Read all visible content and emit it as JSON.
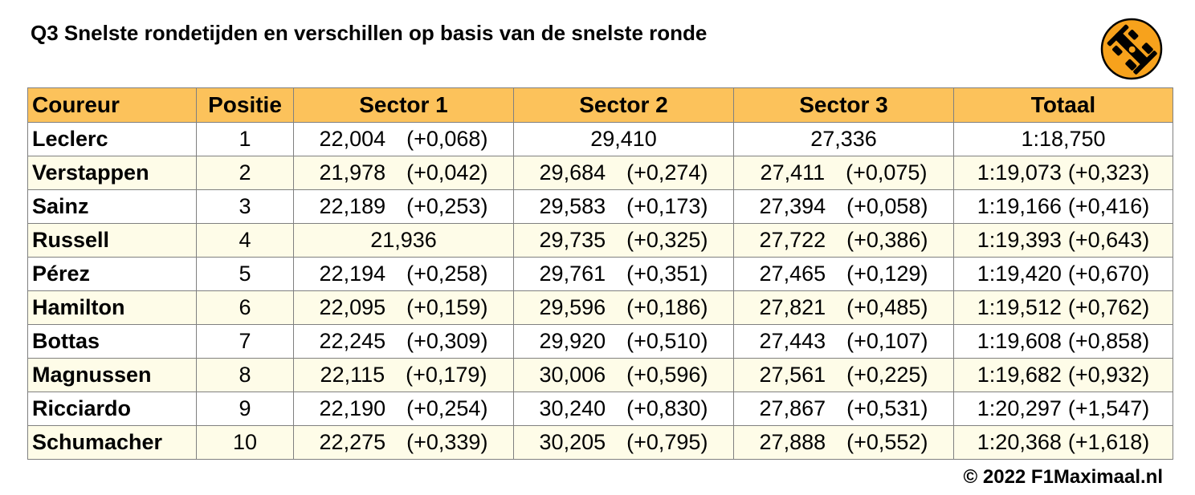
{
  "title": "Q3 Snelste rondetijden en verschillen op basis van de snelste ronde",
  "logo_icon": "race-car-icon",
  "colors": {
    "header_bg": "#fcc25b",
    "alt_row_bg": "#fefce8",
    "logo_bg": "#f7a21c"
  },
  "table": {
    "headers": [
      "Coureur",
      "Positie",
      "Sector 1",
      "Sector 2",
      "Sector 3",
      "Totaal"
    ],
    "rows": [
      {
        "driver": "Leclerc",
        "pos": "1",
        "s1": "22,004",
        "s1d": "(+0,068)",
        "s2": "29,410",
        "s2d": "",
        "s3": "27,336",
        "s3d": "",
        "tot": "1:18,750",
        "totd": ""
      },
      {
        "driver": "Verstappen",
        "pos": "2",
        "s1": "21,978",
        "s1d": "(+0,042)",
        "s2": "29,684",
        "s2d": "(+0,274)",
        "s3": "27,411",
        "s3d": "(+0,075)",
        "tot": "1:19,073",
        "totd": "(+0,323)"
      },
      {
        "driver": "Sainz",
        "pos": "3",
        "s1": "22,189",
        "s1d": "(+0,253)",
        "s2": "29,583",
        "s2d": "(+0,173)",
        "s3": "27,394",
        "s3d": "(+0,058)",
        "tot": "1:19,166",
        "totd": "(+0,416)"
      },
      {
        "driver": "Russell",
        "pos": "4",
        "s1": "21,936",
        "s1d": "",
        "s2": "29,735",
        "s2d": "(+0,325)",
        "s3": "27,722",
        "s3d": "(+0,386)",
        "tot": "1:19,393",
        "totd": "(+0,643)"
      },
      {
        "driver": "Pérez",
        "pos": "5",
        "s1": "22,194",
        "s1d": "(+0,258)",
        "s2": "29,761",
        "s2d": "(+0,351)",
        "s3": "27,465",
        "s3d": "(+0,129)",
        "tot": "1:19,420",
        "totd": "(+0,670)"
      },
      {
        "driver": "Hamilton",
        "pos": "6",
        "s1": "22,095",
        "s1d": "(+0,159)",
        "s2": "29,596",
        "s2d": "(+0,186)",
        "s3": "27,821",
        "s3d": "(+0,485)",
        "tot": "1:19,512",
        "totd": "(+0,762)"
      },
      {
        "driver": "Bottas",
        "pos": "7",
        "s1": "22,245",
        "s1d": "(+0,309)",
        "s2": "29,920",
        "s2d": "(+0,510)",
        "s3": "27,443",
        "s3d": "(+0,107)",
        "tot": "1:19,608",
        "totd": "(+0,858)"
      },
      {
        "driver": "Magnussen",
        "pos": "8",
        "s1": "22,115",
        "s1d": "(+0,179)",
        "s2": "30,006",
        "s2d": "(+0,596)",
        "s3": "27,561",
        "s3d": "(+0,225)",
        "tot": "1:19,682",
        "totd": "(+0,932)"
      },
      {
        "driver": "Ricciardo",
        "pos": "9",
        "s1": "22,190",
        "s1d": "(+0,254)",
        "s2": "30,240",
        "s2d": "(+0,830)",
        "s3": "27,867",
        "s3d": "(+0,531)",
        "tot": "1:20,297",
        "totd": "(+1,547)"
      },
      {
        "driver": "Schumacher",
        "pos": "10",
        "s1": "22,275",
        "s1d": "(+0,339)",
        "s2": "30,205",
        "s2d": "(+0,795)",
        "s3": "27,888",
        "s3d": "(+0,552)",
        "tot": "1:20,368",
        "totd": "(+1,618)"
      }
    ]
  },
  "copyright": "© 2022 F1Maximaal.nl"
}
